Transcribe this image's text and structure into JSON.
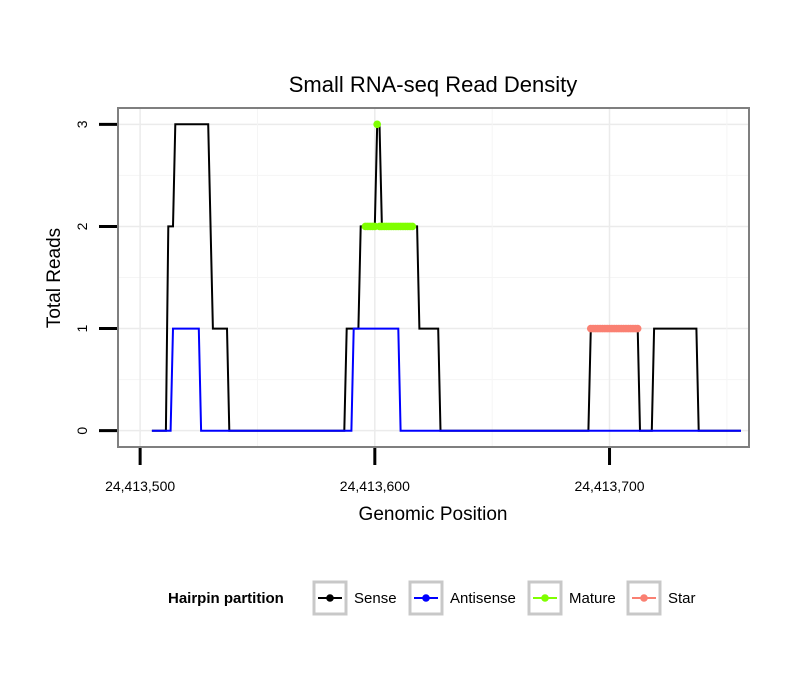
{
  "chart_data": {
    "type": "line",
    "title": "Small RNA-seq Read Density",
    "xlabel": "Genomic Position",
    "ylabel": "Total Reads",
    "xlim": [
      24413491,
      24413759
    ],
    "ylim": [
      -0.15,
      3.15
    ],
    "xticks": [
      24413500,
      24413600,
      24413700
    ],
    "xtick_labels": [
      "24,413,500",
      "24,413,600",
      "24,413,700"
    ],
    "yticks": [
      0,
      1,
      2,
      3
    ],
    "ytick_labels": [
      "0",
      "1",
      "2",
      "3"
    ],
    "grid": true,
    "legend": {
      "title": "Hairpin partition",
      "position": "bottom",
      "entries": [
        "Sense",
        "Antisense",
        "Mature",
        "Star"
      ]
    },
    "series": [
      {
        "name": "Sense",
        "color": "#000000",
        "kind": "line",
        "x": [
          24413505,
          24413511,
          24413512,
          24413514,
          24413515,
          24413529,
          24413531,
          24413537,
          24413538,
          24413587,
          24413588,
          24413593,
          24413594,
          24413600,
          24413601,
          24413602,
          24413603,
          24413618,
          24413619,
          24413627,
          24413628,
          24413691,
          24413692,
          24413712,
          24413713,
          24413718,
          24413719,
          24413737,
          24413738,
          24413756
        ],
        "y": [
          0,
          0,
          2,
          2,
          3,
          3,
          1,
          1,
          0,
          0,
          1,
          1,
          2,
          2,
          3,
          3,
          2,
          2,
          1,
          1,
          0,
          0,
          1,
          1,
          0,
          0,
          1,
          1,
          0,
          0
        ]
      },
      {
        "name": "Antisense",
        "color": "#0000ff",
        "kind": "line",
        "x": [
          24413505,
          24413513,
          24413514,
          24413525,
          24413526,
          24413587,
          24413588,
          24413590,
          24413591,
          24413610,
          24413611,
          24413737,
          24413738,
          24413756
        ],
        "y": [
          0,
          0,
          1,
          1,
          0,
          0,
          0,
          0,
          1,
          1,
          0,
          0,
          0,
          0
        ]
      },
      {
        "name": "Mature",
        "color": "#7fff00",
        "kind": "points",
        "x": [
          24413601,
          24413596,
          24413597,
          24413598,
          24413599,
          24413600,
          24413602,
          24413603,
          24413604,
          24413605,
          24413606,
          24413607,
          24413608,
          24413609,
          24413610,
          24413611,
          24413612,
          24413613,
          24413614,
          24413615,
          24413616
        ],
        "y": [
          3,
          2,
          2,
          2,
          2,
          2,
          2,
          2,
          2,
          2,
          2,
          2,
          2,
          2,
          2,
          2,
          2,
          2,
          2,
          2,
          2
        ]
      },
      {
        "name": "Star",
        "color": "#fa8072",
        "kind": "points",
        "x": [
          24413692,
          24413693,
          24413694,
          24413695,
          24413696,
          24413697,
          24413698,
          24413699,
          24413700,
          24413701,
          24413702,
          24413703,
          24413704,
          24413705,
          24413706,
          24413707,
          24413708,
          24413709,
          24413710,
          24413711,
          24413712
        ],
        "y": [
          1,
          1,
          1,
          1,
          1,
          1,
          1,
          1,
          1,
          1,
          1,
          1,
          1,
          1,
          1,
          1,
          1,
          1,
          1,
          1,
          1
        ]
      }
    ]
  }
}
